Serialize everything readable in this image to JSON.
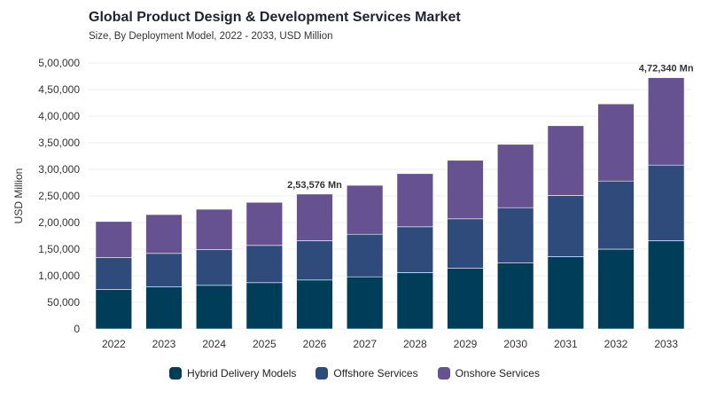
{
  "chart_data": {
    "type": "bar",
    "stacked": true,
    "title": "Global Product Design & Development Services Market",
    "subtitle": "Size, By Deployment Model, 2022 - 2033, USD Million",
    "ylabel": "USD Million",
    "xlabel": "",
    "ylim": [
      0,
      500000
    ],
    "yticks": [
      0,
      50000,
      100000,
      150000,
      200000,
      250000,
      300000,
      350000,
      400000,
      450000,
      500000
    ],
    "ytick_labels": [
      "0",
      "50,000",
      "1,00,000",
      "1,50,000",
      "2,00,000",
      "2,50,000",
      "3,00,000",
      "3,50,000",
      "4,00,000",
      "4,50,000",
      "5,00,000"
    ],
    "grid": true,
    "legend_position": "bottom",
    "categories": [
      "2022",
      "2023",
      "2024",
      "2025",
      "2026",
      "2027",
      "2028",
      "2029",
      "2030",
      "2031",
      "2032",
      "2033"
    ],
    "series": [
      {
        "name": "Hybrid Delivery Models",
        "color": "#003d58",
        "values": [
          74000,
          79000,
          82000,
          87000,
          92000,
          98000,
          106000,
          114000,
          124000,
          136000,
          150000,
          166000
        ]
      },
      {
        "name": "Offshore Services",
        "color": "#2f4b7c",
        "values": [
          60000,
          63000,
          67000,
          70000,
          74000,
          80000,
          86000,
          93000,
          104000,
          115000,
          128000,
          142000
        ]
      },
      {
        "name": "Onshore Services",
        "color": "#665191",
        "values": [
          68000,
          73000,
          76000,
          81000,
          87576,
          92000,
          100000,
          110000,
          119000,
          131000,
          145000,
          164340
        ]
      }
    ],
    "annotations": [
      {
        "category": "2026",
        "text": "2,53,576 Mn"
      },
      {
        "category": "2033",
        "text": "4,72,340 Mn"
      }
    ]
  }
}
